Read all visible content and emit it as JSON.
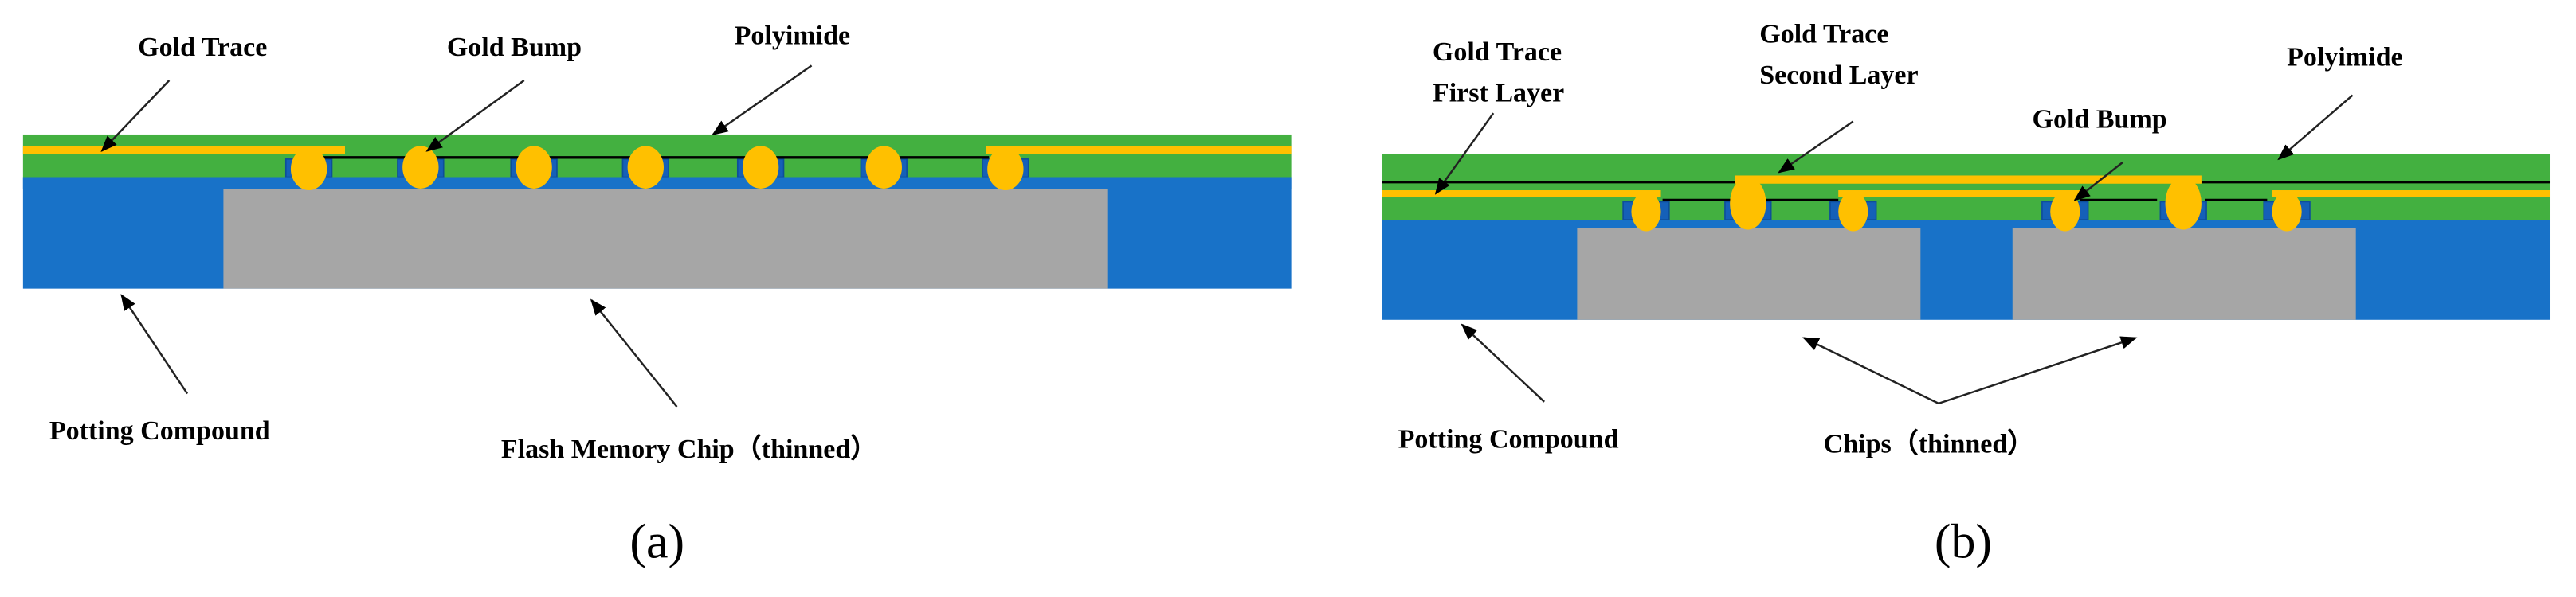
{
  "colors": {
    "polyimide": "#43B040",
    "potting_compound": "#1872C8",
    "pad": "#1560B8",
    "chip": "#A6A6A6",
    "gold": "#FFC000",
    "line": "#000000"
  },
  "panel_a": {
    "labels": {
      "gold_trace": "Gold Trace",
      "gold_bump": "Gold Bump",
      "polyimide": "Polyimide",
      "potting_compound": "Potting Compound",
      "chip": "Flash Memory Chip（thinned）"
    },
    "caption": "(a)"
  },
  "panel_b": {
    "labels": {
      "gold_trace_first_1": "Gold Trace",
      "gold_trace_first_2": "First Layer",
      "gold_trace_second_1": "Gold Trace",
      "gold_trace_second_2": "Second Layer",
      "gold_bump": "Gold Bump",
      "polyimide": "Polyimide",
      "potting_compound": "Potting Compound",
      "chips": "Chips（thinned）"
    },
    "caption": "(b)"
  }
}
